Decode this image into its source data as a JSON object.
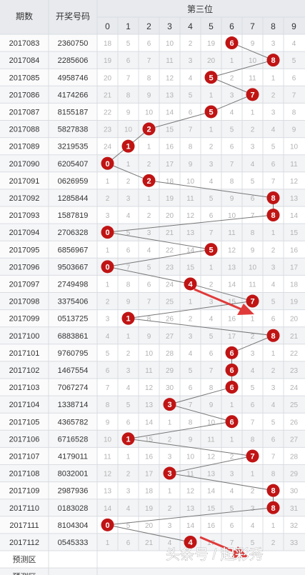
{
  "colors": {
    "header_bg": "#e8eaee",
    "row_even": "#ffffff",
    "row_odd": "#f3f4f6",
    "grid": "#d9dce1",
    "ball": "#c01414",
    "ball_line": "#777777",
    "arrow": "#e03a3a"
  },
  "table": {
    "header_issue": "期数",
    "header_code": "开奖号码",
    "header_position": "第三位",
    "footer_rows": [
      "预测区",
      "预测区"
    ]
  },
  "watermark": "头条号 / 起彩秀",
  "chart_data": {
    "type": "table",
    "columns": [
      0,
      1,
      2,
      3,
      4,
      5,
      6,
      7,
      8,
      9
    ],
    "rows": [
      {
        "issue": "2017083",
        "code": "2360750",
        "value": 6,
        "miss": [
          18,
          5,
          6,
          10,
          2,
          19,
          null,
          9,
          3,
          4
        ]
      },
      {
        "issue": "2017084",
        "code": "2285606",
        "value": 8,
        "miss": [
          19,
          6,
          7,
          11,
          3,
          20,
          1,
          10,
          null,
          5
        ]
      },
      {
        "issue": "2017085",
        "code": "4958746",
        "value": 5,
        "miss": [
          20,
          7,
          8,
          12,
          4,
          null,
          2,
          11,
          1,
          6
        ]
      },
      {
        "issue": "2017086",
        "code": "4174266",
        "value": 7,
        "miss": [
          21,
          8,
          9,
          13,
          5,
          1,
          3,
          null,
          2,
          7
        ]
      },
      {
        "issue": "2017087",
        "code": "8155187",
        "value": 5,
        "miss": [
          22,
          9,
          10,
          14,
          6,
          null,
          4,
          1,
          3,
          8
        ]
      },
      {
        "issue": "2017088",
        "code": "5827838",
        "value": 2,
        "miss": [
          23,
          10,
          null,
          15,
          7,
          1,
          5,
          2,
          4,
          9
        ]
      },
      {
        "issue": "2017089",
        "code": "3219535",
        "value": 1,
        "miss": [
          24,
          null,
          1,
          16,
          8,
          2,
          6,
          3,
          5,
          10
        ]
      },
      {
        "issue": "2017090",
        "code": "6205407",
        "value": 0,
        "miss": [
          null,
          1,
          2,
          17,
          9,
          3,
          7,
          4,
          6,
          11
        ]
      },
      {
        "issue": "2017091",
        "code": "0626959",
        "value": 2,
        "miss": [
          1,
          2,
          null,
          18,
          10,
          4,
          8,
          5,
          7,
          12
        ]
      },
      {
        "issue": "2017092",
        "code": "1285844",
        "value": 8,
        "miss": [
          2,
          3,
          1,
          19,
          11,
          5,
          9,
          6,
          null,
          13
        ]
      },
      {
        "issue": "2017093",
        "code": "1587819",
        "value": 8,
        "miss": [
          3,
          4,
          2,
          20,
          12,
          6,
          10,
          7,
          null,
          14
        ]
      },
      {
        "issue": "2017094",
        "code": "2706328",
        "value": 0,
        "miss": [
          null,
          5,
          3,
          21,
          13,
          7,
          11,
          8,
          1,
          15
        ]
      },
      {
        "issue": "2017095",
        "code": "6856967",
        "value": 5,
        "miss": [
          1,
          6,
          4,
          22,
          14,
          null,
          12,
          9,
          2,
          16
        ]
      },
      {
        "issue": "2017096",
        "code": "9503667",
        "value": 0,
        "miss": [
          null,
          7,
          5,
          23,
          15,
          1,
          13,
          10,
          3,
          17
        ]
      },
      {
        "issue": "2017097",
        "code": "2749498",
        "value": 4,
        "miss": [
          1,
          8,
          6,
          24,
          null,
          2,
          14,
          11,
          4,
          18
        ]
      },
      {
        "issue": "2017098",
        "code": "3375406",
        "value": 7,
        "miss": [
          2,
          9,
          7,
          25,
          1,
          3,
          15,
          null,
          5,
          19
        ]
      },
      {
        "issue": "2017099",
        "code": "0513725",
        "value": 1,
        "miss": [
          3,
          null,
          8,
          26,
          2,
          4,
          16,
          1,
          6,
          20
        ]
      },
      {
        "issue": "2017100",
        "code": "6883861",
        "value": 8,
        "miss": [
          4,
          1,
          9,
          27,
          3,
          5,
          17,
          2,
          null,
          21
        ]
      },
      {
        "issue": "2017101",
        "code": "9760795",
        "value": 6,
        "miss": [
          5,
          2,
          10,
          28,
          4,
          6,
          null,
          3,
          1,
          22
        ]
      },
      {
        "issue": "2017102",
        "code": "1467554",
        "value": 6,
        "miss": [
          6,
          3,
          11,
          29,
          5,
          7,
          null,
          4,
          2,
          23
        ]
      },
      {
        "issue": "2017103",
        "code": "7067274",
        "value": 6,
        "miss": [
          7,
          4,
          12,
          30,
          6,
          8,
          null,
          5,
          3,
          24
        ]
      },
      {
        "issue": "2017104",
        "code": "1338714",
        "value": 3,
        "miss": [
          8,
          5,
          13,
          null,
          7,
          9,
          1,
          6,
          4,
          25
        ]
      },
      {
        "issue": "2017105",
        "code": "4365782",
        "value": 6,
        "miss": [
          9,
          6,
          14,
          1,
          8,
          10,
          null,
          7,
          5,
          26
        ]
      },
      {
        "issue": "2017106",
        "code": "6716528",
        "value": 1,
        "miss": [
          10,
          null,
          15,
          2,
          9,
          11,
          1,
          8,
          6,
          27
        ]
      },
      {
        "issue": "2017107",
        "code": "4179011",
        "value": 7,
        "miss": [
          11,
          1,
          16,
          3,
          10,
          12,
          2,
          null,
          7,
          28
        ]
      },
      {
        "issue": "2017108",
        "code": "8032001",
        "value": 3,
        "miss": [
          12,
          2,
          17,
          null,
          11,
          13,
          3,
          1,
          8,
          29
        ]
      },
      {
        "issue": "2017109",
        "code": "2987936",
        "value": 8,
        "miss": [
          13,
          3,
          18,
          1,
          12,
          14,
          4,
          2,
          null,
          30
        ]
      },
      {
        "issue": "2017110",
        "code": "0183028",
        "value": 8,
        "miss": [
          14,
          4,
          19,
          2,
          13,
          15,
          5,
          3,
          null,
          31
        ]
      },
      {
        "issue": "2017111",
        "code": "8104304",
        "value": 0,
        "miss": [
          null,
          5,
          20,
          3,
          14,
          16,
          6,
          4,
          1,
          32
        ]
      },
      {
        "issue": "2017112",
        "code": "0545333",
        "value": 4,
        "miss": [
          1,
          6,
          21,
          4,
          null,
          17,
          7,
          5,
          2,
          33
        ]
      }
    ]
  }
}
